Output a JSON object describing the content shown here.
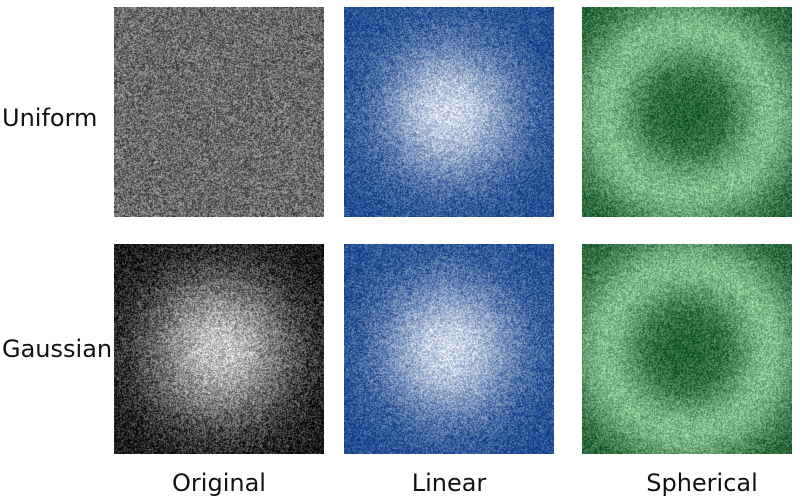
{
  "row_labels": {
    "uniform": "Uniform",
    "gaussian": "Gaussian"
  },
  "column_labels": {
    "original": "Original",
    "linear": "Linear",
    "spherical": "Spherical"
  },
  "colors": {
    "original_dark": "#000000",
    "original_light": "#ffffff",
    "linear_dark": "#0b3a87",
    "linear_light": "#ffffff",
    "spherical_dark": "#0a4a1e",
    "spherical_light": "#c8ffcc"
  },
  "panels": [
    {
      "id": "uniform-original",
      "colormap": "gray",
      "pattern": "uniform-noise"
    },
    {
      "id": "uniform-linear",
      "colormap": "blue",
      "pattern": "center-bright"
    },
    {
      "id": "uniform-spherical",
      "colormap": "green",
      "pattern": "ring"
    },
    {
      "id": "gaussian-original",
      "colormap": "gray",
      "pattern": "gaussian"
    },
    {
      "id": "gaussian-linear",
      "colormap": "blue",
      "pattern": "center-bright"
    },
    {
      "id": "gaussian-spherical",
      "colormap": "green",
      "pattern": "ring"
    }
  ]
}
